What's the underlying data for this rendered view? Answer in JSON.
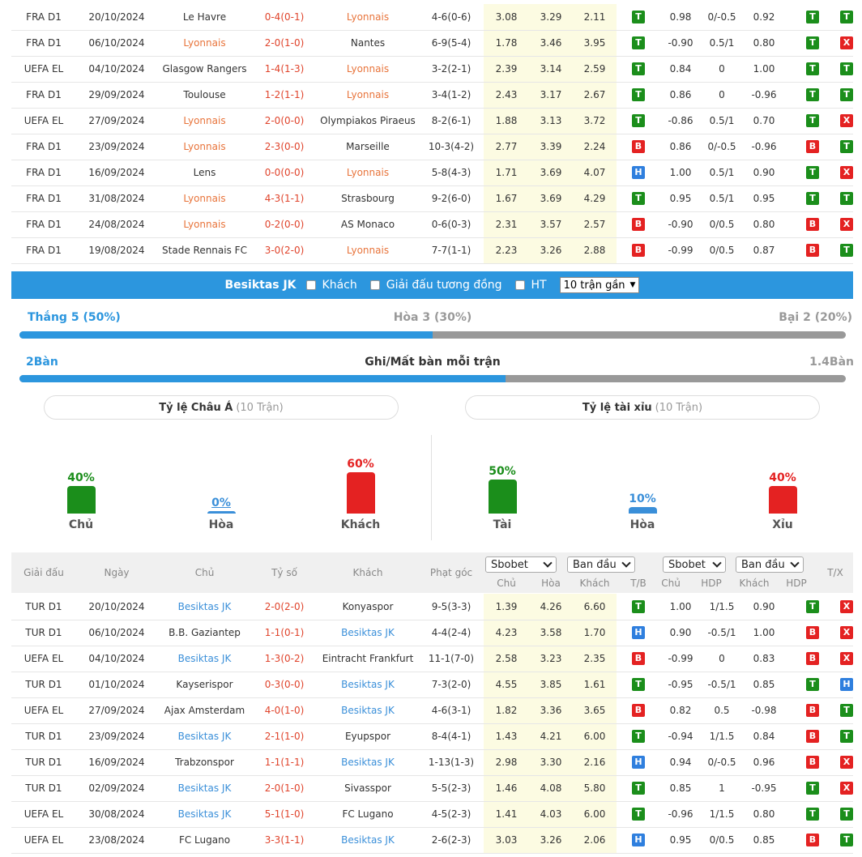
{
  "top_matches": [
    {
      "league": "FRA D1",
      "date": "20/10/2024",
      "home": "Le Havre",
      "score": "0-4(0-1)",
      "away": "Lyonnais",
      "hl": "away",
      "corner": "4-6(0-6)",
      "o1": "3.08",
      "o2": "3.29",
      "o3": "2.11",
      "r1": "T",
      "h1": "0.98",
      "h2": "0/-0.5",
      "h3": "0.92",
      "r2": "T",
      "r3": "T"
    },
    {
      "league": "FRA D1",
      "date": "06/10/2024",
      "home": "Lyonnais",
      "score": "2-0(1-0)",
      "away": "Nantes",
      "hl": "home",
      "corner": "6-9(5-4)",
      "o1": "1.78",
      "o2": "3.46",
      "o3": "3.95",
      "r1": "T",
      "h1": "-0.90",
      "h2": "0.5/1",
      "h3": "0.80",
      "r2": "T",
      "r3": "X"
    },
    {
      "league": "UEFA EL",
      "date": "04/10/2024",
      "home": "Glasgow Rangers",
      "score": "1-4(1-3)",
      "away": "Lyonnais",
      "hl": "away",
      "corner": "3-2(2-1)",
      "o1": "2.39",
      "o2": "3.14",
      "o3": "2.59",
      "r1": "T",
      "h1": "0.84",
      "h2": "0",
      "h3": "1.00",
      "r2": "T",
      "r3": "T"
    },
    {
      "league": "FRA D1",
      "date": "29/09/2024",
      "home": "Toulouse",
      "score": "1-2(1-1)",
      "away": "Lyonnais",
      "hl": "away",
      "corner": "3-4(1-2)",
      "o1": "2.43",
      "o2": "3.17",
      "o3": "2.67",
      "r1": "T",
      "h1": "0.86",
      "h2": "0",
      "h3": "-0.96",
      "r2": "T",
      "r3": "T"
    },
    {
      "league": "UEFA EL",
      "date": "27/09/2024",
      "home": "Lyonnais",
      "score": "2-0(0-0)",
      "away": "Olympiakos Piraeus",
      "hl": "home",
      "corner": "8-2(6-1)",
      "o1": "1.88",
      "o2": "3.13",
      "o3": "3.72",
      "r1": "T",
      "h1": "-0.86",
      "h2": "0.5/1",
      "h3": "0.70",
      "r2": "T",
      "r3": "X"
    },
    {
      "league": "FRA D1",
      "date": "23/09/2024",
      "home": "Lyonnais",
      "score": "2-3(0-0)",
      "away": "Marseille",
      "hl": "home",
      "corner": "10-3(4-2)",
      "o1": "2.77",
      "o2": "3.39",
      "o3": "2.24",
      "r1": "B",
      "h1": "0.86",
      "h2": "0/-0.5",
      "h3": "-0.96",
      "r2": "B",
      "r3": "T"
    },
    {
      "league": "FRA D1",
      "date": "16/09/2024",
      "home": "Lens",
      "score": "0-0(0-0)",
      "away": "Lyonnais",
      "hl": "away",
      "corner": "5-8(4-3)",
      "o1": "1.71",
      "o2": "3.69",
      "o3": "4.07",
      "r1": "H",
      "h1": "1.00",
      "h2": "0.5/1",
      "h3": "0.90",
      "r2": "T",
      "r3": "X"
    },
    {
      "league": "FRA D1",
      "date": "31/08/2024",
      "home": "Lyonnais",
      "score": "4-3(1-1)",
      "away": "Strasbourg",
      "hl": "home",
      "corner": "9-2(6-0)",
      "o1": "1.67",
      "o2": "3.69",
      "o3": "4.29",
      "r1": "T",
      "h1": "0.95",
      "h2": "0.5/1",
      "h3": "0.95",
      "r2": "T",
      "r3": "T"
    },
    {
      "league": "FRA D1",
      "date": "24/08/2024",
      "home": "Lyonnais",
      "score": "0-2(0-0)",
      "away": "AS Monaco",
      "hl": "home",
      "corner": "0-6(0-3)",
      "o1": "2.31",
      "o2": "3.57",
      "o3": "2.57",
      "r1": "B",
      "h1": "-0.90",
      "h2": "0/0.5",
      "h3": "0.80",
      "r2": "B",
      "r3": "X"
    },
    {
      "league": "FRA D1",
      "date": "19/08/2024",
      "home": "Stade Rennais FC",
      "score": "3-0(2-0)",
      "away": "Lyonnais",
      "hl": "away",
      "corner": "7-7(1-1)",
      "o1": "2.23",
      "o2": "3.26",
      "o3": "2.88",
      "r1": "B",
      "h1": "-0.99",
      "h2": "0/0.5",
      "h3": "0.87",
      "r2": "B",
      "r3": "T"
    }
  ],
  "filter_bar": {
    "team": "Besiktas JK",
    "opt1": "Khách",
    "opt2": "Giải đấu tương đồng",
    "opt3": "HT",
    "select": "10 trận gần"
  },
  "summary": {
    "win": "Thắng 5 (50%)",
    "draw": "Hòa 3 (30%)",
    "lose": "Bại 2 (20%)",
    "win_fraction": 0.5,
    "goals_for": "2Bàn",
    "goals_title": "Ghi/Mất bàn mỗi trận",
    "goals_against": "1.4Bàn",
    "goals_fraction": 0.588
  },
  "pills": {
    "asian_title": "Tỷ lệ Châu Á",
    "asian_sub": "(10 Trận)",
    "ou_title": "Tỷ lệ tài xỉu",
    "ou_sub": "(10 Trận)"
  },
  "bar_charts": {
    "asian": [
      {
        "pct": "40%",
        "name": "Chủ",
        "value": 40,
        "color": "#1b8e1b"
      },
      {
        "pct": "0%",
        "name": "Hòa",
        "value": 0,
        "color": "#3a8fd9"
      },
      {
        "pct": "60%",
        "name": "Khách",
        "value": 60,
        "color": "#e42222"
      }
    ],
    "ou": [
      {
        "pct": "50%",
        "name": "Tài",
        "value": 50,
        "color": "#1b8e1b"
      },
      {
        "pct": "10%",
        "name": "Hòa",
        "value": 10,
        "color": "#3a8fd9"
      },
      {
        "pct": "40%",
        "name": "Xỉu",
        "value": 40,
        "color": "#e42222"
      }
    ]
  },
  "table_header": {
    "league": "Giải đấu",
    "date": "Ngày",
    "home": "Chủ",
    "score": "Tỷ số",
    "away": "Khách",
    "corner": "Phạt góc",
    "dd1": "Sbobet",
    "dd2": "Ban đầu",
    "dd3": "Sbobet",
    "dd4": "Ban đầu",
    "s1": "Chủ",
    "s2": "Hòa",
    "s3": "Khách",
    "s4": "T/B",
    "s5": "Chủ",
    "s6": "HDP",
    "s7": "Khách",
    "s8": "HDP",
    "tx": "T/X"
  },
  "bottom_matches": [
    {
      "league": "TUR D1",
      "date": "20/10/2024",
      "home": "Besiktas JK",
      "score": "2-0(2-0)",
      "away": "Konyaspor",
      "hl": "home",
      "corner": "9-5(3-3)",
      "o1": "1.39",
      "o2": "4.26",
      "o3": "6.60",
      "r1": "T",
      "h1": "1.00",
      "h2": "1/1.5",
      "h3": "0.90",
      "r2": "T",
      "r3": "X"
    },
    {
      "league": "TUR D1",
      "date": "06/10/2024",
      "home": "B.B. Gaziantep",
      "score": "1-1(0-1)",
      "away": "Besiktas JK",
      "hl": "away",
      "corner": "4-4(2-4)",
      "o1": "4.23",
      "o2": "3.58",
      "o3": "1.70",
      "r1": "H",
      "h1": "0.90",
      "h2": "-0.5/1",
      "h3": "1.00",
      "r2": "B",
      "r3": "X"
    },
    {
      "league": "UEFA EL",
      "date": "04/10/2024",
      "home": "Besiktas JK",
      "score": "1-3(0-2)",
      "away": "Eintracht Frankfurt",
      "hl": "home",
      "corner": "11-1(7-0)",
      "o1": "2.58",
      "o2": "3.23",
      "o3": "2.35",
      "r1": "B",
      "h1": "-0.99",
      "h2": "0",
      "h3": "0.83",
      "r2": "B",
      "r3": "X"
    },
    {
      "league": "TUR D1",
      "date": "01/10/2024",
      "home": "Kayserispor",
      "score": "0-3(0-0)",
      "away": "Besiktas JK",
      "hl": "away",
      "corner": "7-3(2-0)",
      "o1": "4.55",
      "o2": "3.85",
      "o3": "1.61",
      "r1": "T",
      "h1": "-0.95",
      "h2": "-0.5/1",
      "h3": "0.85",
      "r2": "T",
      "r3": "H"
    },
    {
      "league": "UEFA EL",
      "date": "27/09/2024",
      "home": "Ajax Amsterdam",
      "score": "4-0(1-0)",
      "away": "Besiktas JK",
      "hl": "away",
      "corner": "4-6(3-1)",
      "o1": "1.82",
      "o2": "3.36",
      "o3": "3.65",
      "r1": "B",
      "h1": "0.82",
      "h2": "0.5",
      "h3": "-0.98",
      "r2": "B",
      "r3": "T"
    },
    {
      "league": "TUR D1",
      "date": "23/09/2024",
      "home": "Besiktas JK",
      "score": "2-1(1-0)",
      "away": "Eyupspor",
      "hl": "home",
      "corner": "8-4(4-1)",
      "o1": "1.43",
      "o2": "4.21",
      "o3": "6.00",
      "r1": "T",
      "h1": "-0.94",
      "h2": "1/1.5",
      "h3": "0.84",
      "r2": "B",
      "r3": "T"
    },
    {
      "league": "TUR D1",
      "date": "16/09/2024",
      "home": "Trabzonspor",
      "score": "1-1(1-1)",
      "away": "Besiktas JK",
      "hl": "away",
      "corner": "1-13(1-3)",
      "o1": "2.98",
      "o2": "3.30",
      "o3": "2.16",
      "r1": "H",
      "h1": "0.94",
      "h2": "0/-0.5",
      "h3": "0.96",
      "r2": "B",
      "r3": "X"
    },
    {
      "league": "TUR D1",
      "date": "02/09/2024",
      "home": "Besiktas JK",
      "score": "2-0(1-0)",
      "away": "Sivasspor",
      "hl": "home",
      "corner": "5-5(2-3)",
      "o1": "1.46",
      "o2": "4.08",
      "o3": "5.80",
      "r1": "T",
      "h1": "0.85",
      "h2": "1",
      "h3": "-0.95",
      "r2": "T",
      "r3": "X"
    },
    {
      "league": "UEFA EL",
      "date": "30/08/2024",
      "home": "Besiktas JK",
      "score": "5-1(1-0)",
      "away": "FC Lugano",
      "hl": "home",
      "corner": "4-5(2-3)",
      "o1": "1.41",
      "o2": "4.03",
      "o3": "6.00",
      "r1": "T",
      "h1": "-0.96",
      "h2": "1/1.5",
      "h3": "0.80",
      "r2": "T",
      "r3": "T"
    },
    {
      "league": "UEFA EL",
      "date": "23/08/2024",
      "home": "FC Lugano",
      "score": "3-3(1-1)",
      "away": "Besiktas JK",
      "hl": "away",
      "corner": "2-6(2-3)",
      "o1": "3.03",
      "o2": "3.26",
      "o3": "2.06",
      "r1": "H",
      "h1": "0.95",
      "h2": "0/0.5",
      "h3": "0.85",
      "r2": "B",
      "r3": "T"
    }
  ]
}
